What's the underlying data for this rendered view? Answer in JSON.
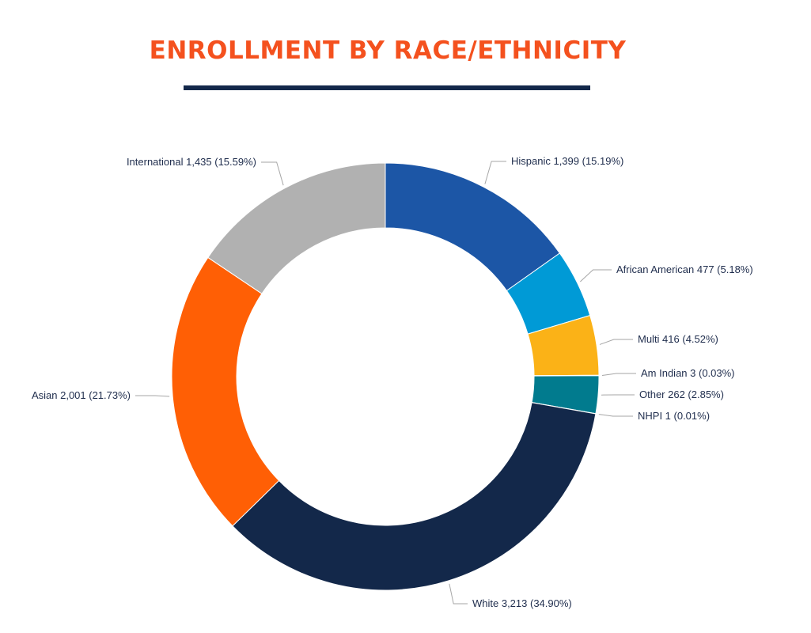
{
  "title": "ENROLLMENT BY RACE/ETHNICITY",
  "chart_data": {
    "type": "pie",
    "donut": true,
    "title": "ENROLLMENT BY RACE/ETHNICITY",
    "start": "12 o'clock",
    "direction": "clockwise",
    "slices": [
      {
        "name": "Hispanic",
        "value": 1399,
        "percent": 15.19,
        "label": "Hispanic 1,399 (15.19%)",
        "color": "#1c56a6",
        "label_side": "right"
      },
      {
        "name": "African American",
        "value": 477,
        "percent": 5.18,
        "label": "African American 477 (5.18%)",
        "color": "#009ad6",
        "label_side": "right"
      },
      {
        "name": "Multi",
        "value": 416,
        "percent": 4.52,
        "label": "Multi 416 (4.52%)",
        "color": "#fbb217",
        "label_side": "right"
      },
      {
        "name": "Am Indian",
        "value": 3,
        "percent": 0.03,
        "label": "Am Indian 3 (0.03%)",
        "color": "#6b6b6b",
        "label_side": "right"
      },
      {
        "name": "Other",
        "value": 262,
        "percent": 2.85,
        "label": "Other 262 (2.85%)",
        "color": "#017b8e",
        "label_side": "right"
      },
      {
        "name": "NHPI",
        "value": 1,
        "percent": 0.01,
        "label": "NHPI 1 (0.01%)",
        "color": "#4a4a4a",
        "label_side": "right"
      },
      {
        "name": "White",
        "value": 3213,
        "percent": 34.9,
        "label": "White 3,213 (34.90%)",
        "color": "#13284a",
        "label_side": "bottom"
      },
      {
        "name": "Asian",
        "value": 2001,
        "percent": 21.73,
        "label": "Asian 2,001 (21.73%)",
        "color": "#ff5f05",
        "label_side": "left"
      },
      {
        "name": "International",
        "value": 1435,
        "percent": 15.59,
        "label": "International 1,435 (15.59%)",
        "color": "#b1b1b1",
        "label_side": "left"
      }
    ]
  }
}
